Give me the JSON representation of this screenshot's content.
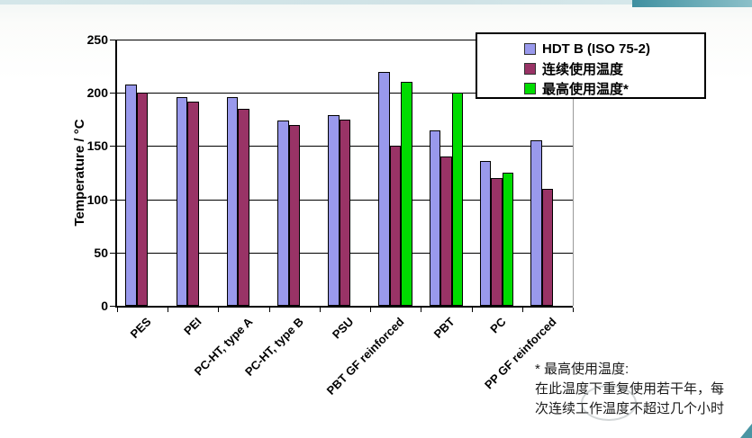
{
  "page": {
    "background": "#fbfcfa",
    "accent_teal": "#4a95a3"
  },
  "chart_data": {
    "type": "bar",
    "title": "",
    "xlabel": "",
    "ylabel": "Temperature / °C",
    "ylim": [
      0,
      250
    ],
    "ytick_step": 50,
    "grid": true,
    "legend_position": "top-right",
    "axis_color": "#000000",
    "plot_border_right_color": "#9a9a9a",
    "categories": [
      "PES",
      "PEI",
      "PC-HT, type A",
      "PC-HT, type B",
      "PSU",
      "PBT GF reinforced",
      "PBT",
      "PC",
      "PP GF reinforced"
    ],
    "series": [
      {
        "name": "HDT B (ISO 75-2)",
        "color": "#9999EC",
        "values": [
          208,
          196,
          196,
          174,
          179,
          220,
          165,
          136,
          155
        ]
      },
      {
        "name": "连续使用温度",
        "color": "#993366",
        "values": [
          200,
          192,
          185,
          170,
          175,
          150,
          140,
          120,
          110
        ]
      },
      {
        "name": "最高使用温度*",
        "color": "#00DC00",
        "values": [
          null,
          null,
          null,
          null,
          null,
          210,
          200,
          125,
          null
        ]
      }
    ]
  },
  "footnote": {
    "lines": [
      "* 最高使用温度:",
      "在此温度下重复使用若干年，每",
      "次连续工作温度不超过几个小时"
    ]
  }
}
